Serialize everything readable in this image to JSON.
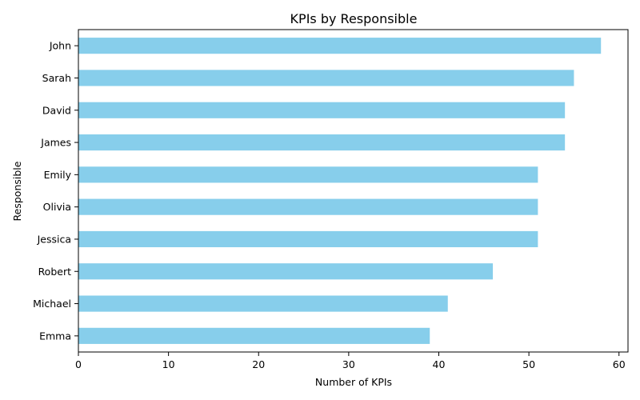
{
  "chart_data": {
    "type": "bar",
    "orientation": "horizontal",
    "title": "KPIs by Responsible",
    "xlabel": "Number of KPIs",
    "ylabel": "Responsible",
    "categories": [
      "John",
      "Sarah",
      "David",
      "James",
      "Emily",
      "Olivia",
      "Jessica",
      "Robert",
      "Michael",
      "Emma"
    ],
    "values": [
      58,
      55,
      54,
      54,
      51,
      51,
      51,
      46,
      41,
      39
    ],
    "xlim": [
      0,
      61
    ],
    "xticks": [
      0,
      10,
      20,
      30,
      40,
      50,
      60
    ],
    "grid": false,
    "bar_color": "#87ceeb"
  }
}
